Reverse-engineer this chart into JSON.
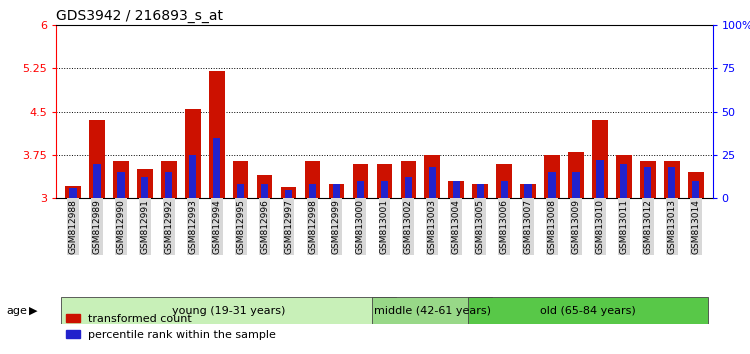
{
  "title": "GDS3942 / 216893_s_at",
  "samples": [
    "GSM812988",
    "GSM812989",
    "GSM812990",
    "GSM812991",
    "GSM812992",
    "GSM812993",
    "GSM812994",
    "GSM812995",
    "GSM812996",
    "GSM812997",
    "GSM812998",
    "GSM812999",
    "GSM813000",
    "GSM813001",
    "GSM813002",
    "GSM813003",
    "GSM813004",
    "GSM813005",
    "GSM813006",
    "GSM813007",
    "GSM813008",
    "GSM813009",
    "GSM813010",
    "GSM813011",
    "GSM813012",
    "GSM813013",
    "GSM813014"
  ],
  "red_values": [
    3.22,
    4.35,
    3.65,
    3.5,
    3.65,
    4.55,
    5.2,
    3.65,
    3.4,
    3.2,
    3.65,
    3.25,
    3.6,
    3.6,
    3.65,
    3.75,
    3.3,
    3.25,
    3.6,
    3.25,
    3.75,
    3.8,
    4.35,
    3.75,
    3.65,
    3.65,
    3.45
  ],
  "blue_percentiles": [
    6,
    20,
    15,
    12,
    15,
    25,
    35,
    8,
    8,
    5,
    8,
    8,
    10,
    10,
    12,
    18,
    10,
    8,
    10,
    8,
    15,
    15,
    22,
    20,
    18,
    18,
    10
  ],
  "baseline": 3.0,
  "ylim_left": [
    3.0,
    6.0
  ],
  "ylim_right": [
    0,
    100
  ],
  "yticks_left": [
    3.0,
    3.75,
    4.5,
    5.25,
    6.0
  ],
  "ytick_labels_left": [
    "3",
    "3.75",
    "4.5",
    "5.25",
    "6"
  ],
  "yticks_right": [
    0,
    25,
    50,
    75,
    100
  ],
  "ytick_labels_right": [
    "0",
    "25",
    "50",
    "75",
    "100%"
  ],
  "hlines": [
    3.75,
    4.5,
    5.25
  ],
  "groups": [
    {
      "label": "young (19-31 years)",
      "start": 0,
      "end": 13,
      "color": "#c8f0b8"
    },
    {
      "label": "middle (42-61 years)",
      "start": 13,
      "end": 17,
      "color": "#98d888"
    },
    {
      "label": "old (65-84 years)",
      "start": 17,
      "end": 26,
      "color": "#58c848"
    }
  ],
  "bar_width": 0.65,
  "blue_bar_width": 0.3,
  "red_color": "#cc1100",
  "blue_color": "#2222cc",
  "title_fontsize": 10,
  "tick_fontsize": 6.5,
  "group_fontsize": 8,
  "legend_fontsize": 8,
  "age_label": "age",
  "legend_items": [
    "transformed count",
    "percentile rank within the sample"
  ]
}
